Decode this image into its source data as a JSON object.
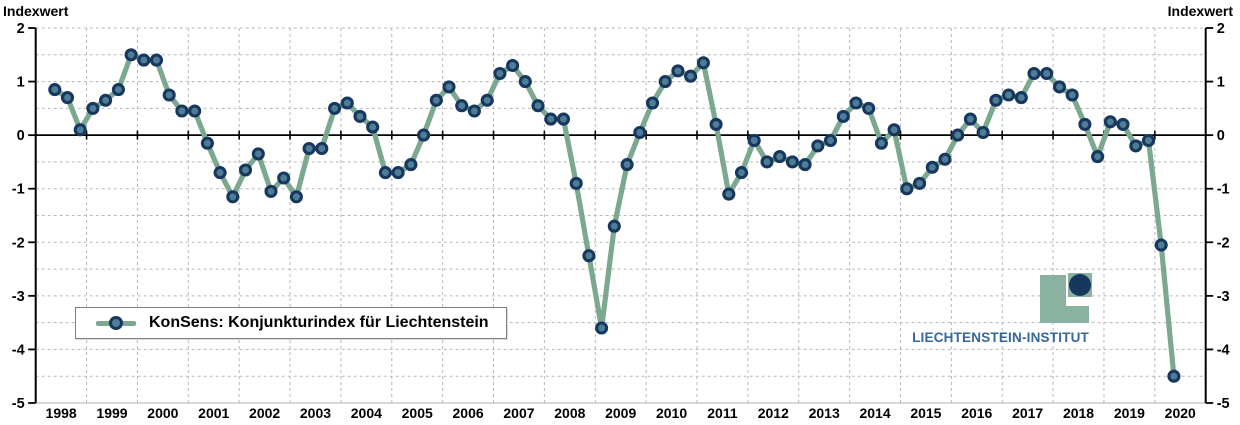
{
  "axis": {
    "title_left": "Indexwert",
    "title_right": "Indexwert"
  },
  "legend": {
    "label": "KonSens: Konjunkturindex für Liechtenstein"
  },
  "logo": {
    "text": "LIECHTENSTEIN-INSTITUT"
  },
  "colors": {
    "line": "#7CA88F",
    "marker_ring": "#17375E",
    "marker_center": "#4E7E96",
    "grid": "#b8b8b8",
    "axis": "#000000",
    "bottom_border": "#c0c0c0",
    "logo_green": "#8BB2A0",
    "logo_navy": "#17375E",
    "logo_text_blue": "#376699"
  },
  "chart_data": {
    "type": "line",
    "title": "KonSens: Konjunkturindex für Liechtenstein",
    "xlabel": "",
    "ylabel": "Indexwert",
    "ylim": [
      -5,
      2
    ],
    "y_ticks": [
      2,
      1,
      0,
      -1,
      -2,
      -3,
      -4,
      -5
    ],
    "gridline_step": 0.5,
    "grid": true,
    "legend_position": "bottom-left",
    "frequency": "quarterly",
    "x_axis_span_years": [
      1998,
      2021
    ],
    "year_labels": [
      1998,
      1999,
      2000,
      2001,
      2002,
      2003,
      2004,
      2005,
      2006,
      2007,
      2008,
      2009,
      2010,
      2011,
      2012,
      2013,
      2014,
      2015,
      2016,
      2017,
      2018,
      2019,
      2020
    ],
    "series": [
      {
        "name": "KonSens: Konjunkturindex für Liechtenstein",
        "values_by_year": [
          {
            "year": 1998,
            "quarters": [
              null,
              0.85,
              0.7,
              0.1
            ]
          },
          {
            "year": 1999,
            "quarters": [
              0.5,
              0.65,
              0.85,
              1.5
            ]
          },
          {
            "year": 2000,
            "quarters": [
              1.4,
              1.4,
              0.75,
              0.45
            ]
          },
          {
            "year": 2001,
            "quarters": [
              0.45,
              -0.15,
              -0.7,
              -1.15
            ]
          },
          {
            "year": 2002,
            "quarters": [
              -0.65,
              -0.35,
              -1.05,
              -0.8
            ]
          },
          {
            "year": 2003,
            "quarters": [
              -1.15,
              -0.25,
              -0.25,
              0.5
            ]
          },
          {
            "year": 2004,
            "quarters": [
              0.6,
              0.35,
              0.15,
              -0.7
            ]
          },
          {
            "year": 2005,
            "quarters": [
              -0.7,
              -0.55,
              0.0,
              0.65
            ]
          },
          {
            "year": 2006,
            "quarters": [
              0.9,
              0.55,
              0.45,
              0.65
            ]
          },
          {
            "year": 2007,
            "quarters": [
              1.15,
              1.3,
              1.0,
              0.55
            ]
          },
          {
            "year": 2008,
            "quarters": [
              0.3,
              0.3,
              -0.9,
              -2.25
            ]
          },
          {
            "year": 2009,
            "quarters": [
              -3.6,
              -1.7,
              -0.55,
              0.05
            ]
          },
          {
            "year": 2010,
            "quarters": [
              0.6,
              1.0,
              1.2,
              1.1
            ]
          },
          {
            "year": 2011,
            "quarters": [
              1.35,
              0.2,
              -1.1,
              -0.7
            ]
          },
          {
            "year": 2012,
            "quarters": [
              -0.1,
              -0.5,
              -0.4,
              -0.5
            ]
          },
          {
            "year": 2013,
            "quarters": [
              -0.55,
              -0.2,
              -0.1,
              0.35
            ]
          },
          {
            "year": 2014,
            "quarters": [
              0.6,
              0.5,
              -0.15,
              0.1
            ]
          },
          {
            "year": 2015,
            "quarters": [
              -1.0,
              -0.9,
              -0.6,
              -0.45
            ]
          },
          {
            "year": 2016,
            "quarters": [
              0.0,
              0.3,
              0.05,
              0.65
            ]
          },
          {
            "year": 2017,
            "quarters": [
              0.75,
              0.7,
              1.15,
              1.15
            ]
          },
          {
            "year": 2018,
            "quarters": [
              0.9,
              0.75,
              0.2,
              -0.4
            ]
          },
          {
            "year": 2019,
            "quarters": [
              0.25,
              0.2,
              -0.2,
              -0.1
            ]
          },
          {
            "year": 2020,
            "quarters": [
              -2.05,
              -4.5,
              null,
              null
            ]
          }
        ]
      }
    ]
  }
}
